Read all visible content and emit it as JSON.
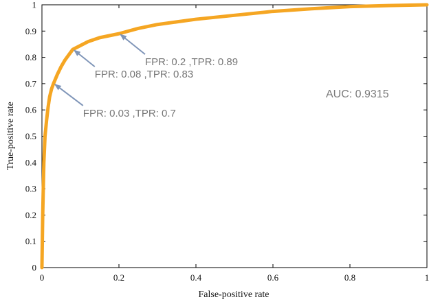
{
  "chart_data": {
    "type": "line",
    "xlabel": "False-positive rate",
    "ylabel": "True-positive rate",
    "xlim": [
      0,
      1
    ],
    "ylim": [
      0,
      1
    ],
    "x_ticks": [
      "0",
      "0.2",
      "0.4",
      "0.6",
      "0.8",
      "1"
    ],
    "y_ticks": [
      "0",
      "0.1",
      "0.2",
      "0.3",
      "0.4",
      "0.5",
      "0.6",
      "0.7",
      "0.8",
      "0.9",
      "1"
    ],
    "grid": false,
    "series": [
      {
        "color": "#F5A623",
        "x": [
          0,
          0.002,
          0.005,
          0.008,
          0.012,
          0.016,
          0.02,
          0.025,
          0.03,
          0.04,
          0.05,
          0.06,
          0.07,
          0.08,
          0.1,
          0.12,
          0.15,
          0.2,
          0.25,
          0.3,
          0.35,
          0.4,
          0.5,
          0.6,
          0.7,
          0.8,
          0.9,
          1.0
        ],
        "y": [
          0,
          0.2,
          0.4,
          0.5,
          0.56,
          0.61,
          0.65,
          0.68,
          0.7,
          0.735,
          0.765,
          0.79,
          0.81,
          0.83,
          0.845,
          0.86,
          0.875,
          0.89,
          0.91,
          0.925,
          0.935,
          0.945,
          0.96,
          0.975,
          0.985,
          0.993,
          0.997,
          1.0
        ]
      }
    ],
    "annotations": [
      {
        "text": "FPR: 0.2 ,TPR: 0.89",
        "x": 0.2,
        "y": 0.89
      },
      {
        "text": "FPR: 0.08 ,TPR: 0.83",
        "x": 0.08,
        "y": 0.83
      },
      {
        "text": "FPR: 0.03 ,TPR: 0.7",
        "x": 0.03,
        "y": 0.7
      }
    ],
    "auc_label": "AUC: 0.9315",
    "colors": {
      "curve": "#F5A623",
      "arrow": "#7F95B8",
      "annotation_text": "#757575",
      "axes": "#000000"
    }
  }
}
